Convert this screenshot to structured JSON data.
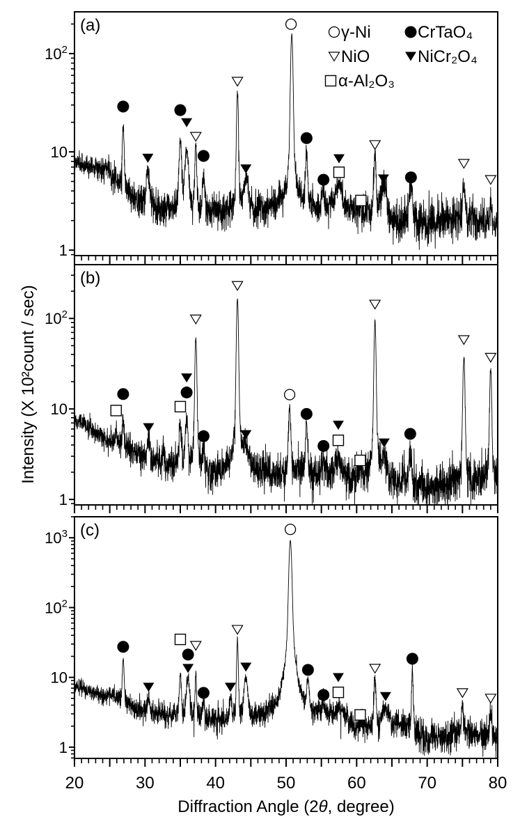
{
  "figure": {
    "y_axis_title": "Intensity (X 10²count / sec)",
    "x_axis_title_prefix": "Diffraction Angle (2",
    "x_axis_title_theta": "θ",
    "x_axis_title_suffix": ",  degree)",
    "x_tick_labels": [
      "20",
      "30",
      "40",
      "50",
      "60",
      "70",
      "80"
    ]
  },
  "legend": {
    "placement": "top-right of panel (a)",
    "entries": [
      {
        "phase": "gamma-Ni",
        "symbol": "open-circle",
        "label": "γ-Ni"
      },
      {
        "phase": "CrTaO4",
        "symbol": "filled-circle",
        "label": "CrTaO₄"
      },
      {
        "phase": "NiO",
        "symbol": "open-triangle-down",
        "label": "NiO"
      },
      {
        "phase": "NiCr2O4",
        "symbol": "filled-triangle-down",
        "label": "NiCr₂O₄"
      },
      {
        "phase": "alpha-Al2O3",
        "symbol": "open-square",
        "label": "α-Al₂O₃"
      }
    ]
  },
  "colors": {
    "line": "#000000",
    "markers": "#000000",
    "background": "#ffffff"
  },
  "chart_data": [
    {
      "type": "line",
      "panel_label": "(a)",
      "xlabel": "Diffraction Angle (2θ,  degree)",
      "ylabel": "Intensity (X 10²count / sec)",
      "xlim": [
        20,
        80
      ],
      "ylim": [
        0.88,
        266
      ],
      "y_scale": "log",
      "grid": false,
      "y_ticks": [
        {
          "value": 1,
          "base": "1",
          "exp": ""
        },
        {
          "value": 10,
          "base": "10",
          "exp": ""
        },
        {
          "value": 100,
          "base": "10",
          "exp": "2"
        }
      ],
      "background": [
        [
          20,
          8
        ],
        [
          24,
          6.6
        ],
        [
          27,
          4.2
        ],
        [
          29,
          3
        ],
        [
          33,
          2.6
        ],
        [
          40,
          2.4
        ],
        [
          47,
          2.6
        ],
        [
          49,
          2.9
        ],
        [
          55,
          2.7
        ],
        [
          60,
          2.5
        ],
        [
          65,
          2.0
        ],
        [
          70,
          1.8
        ],
        [
          75,
          2.2
        ],
        [
          80,
          1.8
        ]
      ],
      "peaks": [
        [
          24.6,
          6.8,
          1.0
        ],
        [
          26.9,
          19,
          0.25
        ],
        [
          30.4,
          6.4,
          0.5
        ],
        [
          35.0,
          13,
          0.35
        ],
        [
          35.9,
          11,
          0.5
        ],
        [
          37.2,
          12,
          0.25
        ],
        [
          38.3,
          6.1,
          0.35
        ],
        [
          43.1,
          40,
          0.25
        ],
        [
          44.3,
          5.7,
          0.6
        ],
        [
          50.8,
          160,
          0.3
        ],
        [
          52.9,
          9.7,
          0.3
        ],
        [
          55.3,
          4,
          0.4
        ],
        [
          57.5,
          4.8,
          0.9
        ],
        [
          60.6,
          2.6,
          0.5
        ],
        [
          62.6,
          9.4,
          0.3
        ],
        [
          63.8,
          4.5,
          0.8
        ],
        [
          67.7,
          4.5,
          0.5
        ],
        [
          75.2,
          5,
          0.3
        ],
        [
          79.0,
          3,
          0.3
        ]
      ],
      "markers": [
        {
          "x": 26.9,
          "y": 28.9,
          "phase": "CrTaO4"
        },
        {
          "x": 30.4,
          "y": 8.6,
          "phase": "NiCr2O4"
        },
        {
          "x": 35.0,
          "y": 26.6,
          "phase": "CrTaO4"
        },
        {
          "x": 35.9,
          "y": 19.8,
          "phase": "NiCr2O4"
        },
        {
          "x": 37.2,
          "y": 14.3,
          "phase": "NiO"
        },
        {
          "x": 38.3,
          "y": 9.1,
          "phase": "CrTaO4"
        },
        {
          "x": 43.1,
          "y": 52,
          "phase": "NiO"
        },
        {
          "x": 44.3,
          "y": 6.7,
          "phase": "NiCr2O4"
        },
        {
          "x": 50.7,
          "y": 199,
          "phase": "gamma-Ni"
        },
        {
          "x": 52.9,
          "y": 13.8,
          "phase": "CrTaO4"
        },
        {
          "x": 55.3,
          "y": 5.2,
          "phase": "CrTaO4"
        },
        {
          "x": 57.5,
          "y": 8.5,
          "phase": "NiCr2O4"
        },
        {
          "x": 57.5,
          "y": 6.2,
          "phase": "alpha-Al2O3"
        },
        {
          "x": 60.6,
          "y": 3.2,
          "phase": "alpha-Al2O3"
        },
        {
          "x": 62.6,
          "y": 11.8,
          "phase": "NiO"
        },
        {
          "x": 63.8,
          "y": 5.3,
          "phase": "NiCr2O4"
        },
        {
          "x": 67.7,
          "y": 5.5,
          "phase": "CrTaO4"
        },
        {
          "x": 75.2,
          "y": 7.6,
          "phase": "NiO"
        },
        {
          "x": 79.0,
          "y": 5.2,
          "phase": "NiO"
        }
      ]
    },
    {
      "type": "line",
      "panel_label": "(b)",
      "xlabel": "Diffraction Angle (2θ,  degree)",
      "ylabel": "Intensity (X 10²count / sec)",
      "xlim": [
        20,
        80
      ],
      "ylim": [
        0.87,
        393
      ],
      "y_scale": "log",
      "grid": false,
      "y_ticks": [
        {
          "value": 1,
          "base": "1",
          "exp": ""
        },
        {
          "value": 10,
          "base": "10",
          "exp": ""
        },
        {
          "value": 100,
          "base": "10",
          "exp": "2"
        }
      ],
      "background": [
        [
          20,
          7.9
        ],
        [
          25,
          4.4
        ],
        [
          30,
          2.9
        ],
        [
          33,
          2.4
        ],
        [
          40,
          1.9
        ],
        [
          45,
          2.3
        ],
        [
          48,
          1.8
        ],
        [
          55,
          2.0
        ],
        [
          60,
          1.6
        ],
        [
          65,
          1.6
        ],
        [
          70,
          1.33
        ],
        [
          75,
          1.5
        ],
        [
          80,
          1.6
        ]
      ],
      "peaks": [
        [
          23.4,
          5.0,
          0.3
        ],
        [
          25.9,
          5.7,
          0.25
        ],
        [
          26.9,
          8,
          0.25
        ],
        [
          30.5,
          4.7,
          0.35
        ],
        [
          32.6,
          3.7,
          0.2
        ],
        [
          35.0,
          7,
          0.3
        ],
        [
          35.9,
          7.5,
          0.4
        ],
        [
          37.2,
          62,
          0.25
        ],
        [
          38.3,
          3.5,
          0.3
        ],
        [
          43.1,
          168,
          0.25
        ],
        [
          44.3,
          3.7,
          0.6
        ],
        [
          50.5,
          10.6,
          0.3
        ],
        [
          52.9,
          6.7,
          0.3
        ],
        [
          55.3,
          2.7,
          0.4
        ],
        [
          57.4,
          2.9,
          0.9
        ],
        [
          60.5,
          2.2,
          0.5
        ],
        [
          62.6,
          92,
          0.25
        ],
        [
          63.9,
          2.9,
          0.8
        ],
        [
          67.6,
          3.4,
          0.4
        ],
        [
          75.2,
          39,
          0.25
        ],
        [
          79.0,
          28,
          0.25
        ]
      ],
      "markers": [
        {
          "x": 25.9,
          "y": 9.6,
          "phase": "alpha-Al2O3"
        },
        {
          "x": 26.9,
          "y": 14.6,
          "phase": "CrTaO4"
        },
        {
          "x": 30.5,
          "y": 6.2,
          "phase": "NiCr2O4"
        },
        {
          "x": 35.0,
          "y": 10.6,
          "phase": "alpha-Al2O3"
        },
        {
          "x": 35.9,
          "y": 15.2,
          "phase": "CrTaO4"
        },
        {
          "x": 35.9,
          "y": 22,
          "phase": "NiCr2O4"
        },
        {
          "x": 37.2,
          "y": 98,
          "phase": "NiO"
        },
        {
          "x": 38.3,
          "y": 5.0,
          "phase": "CrTaO4"
        },
        {
          "x": 43.1,
          "y": 230,
          "phase": "NiO"
        },
        {
          "x": 44.3,
          "y": 5.2,
          "phase": "NiCr2O4"
        },
        {
          "x": 50.5,
          "y": 14.4,
          "phase": "gamma-Ni"
        },
        {
          "x": 52.9,
          "y": 8.8,
          "phase": "CrTaO4"
        },
        {
          "x": 55.3,
          "y": 3.9,
          "phase": "CrTaO4"
        },
        {
          "x": 57.4,
          "y": 6.6,
          "phase": "NiCr2O4"
        },
        {
          "x": 57.4,
          "y": 4.5,
          "phase": "alpha-Al2O3"
        },
        {
          "x": 60.5,
          "y": 2.7,
          "phase": "alpha-Al2O3"
        },
        {
          "x": 62.6,
          "y": 143,
          "phase": "NiO"
        },
        {
          "x": 63.9,
          "y": 4.2,
          "phase": "NiCr2O4"
        },
        {
          "x": 67.6,
          "y": 5.3,
          "phase": "CrTaO4"
        },
        {
          "x": 75.2,
          "y": 58,
          "phase": "NiO"
        },
        {
          "x": 79.0,
          "y": 37,
          "phase": "NiO"
        }
      ]
    },
    {
      "type": "line",
      "panel_label": "(c)",
      "xlabel": "Diffraction Angle (2θ,  degree)",
      "ylabel": "Intensity (X 10²count / sec)",
      "xlim": [
        20,
        80
      ],
      "ylim": [
        0.69,
        2000
      ],
      "y_scale": "log",
      "grid": false,
      "y_ticks": [
        {
          "value": 1,
          "base": "1",
          "exp": ""
        },
        {
          "value": 10,
          "base": "10",
          "exp": ""
        },
        {
          "value": 100,
          "base": "10",
          "exp": "2"
        },
        {
          "value": 1000,
          "base": "10",
          "exp": "3"
        }
      ],
      "background": [
        [
          20,
          7.5
        ],
        [
          25,
          5
        ],
        [
          30,
          3.2
        ],
        [
          40,
          2.3
        ],
        [
          47,
          2.5
        ],
        [
          55,
          2.7
        ],
        [
          58,
          2.8
        ],
        [
          60,
          1.7
        ],
        [
          62,
          1.8
        ],
        [
          66,
          2.2
        ],
        [
          70,
          1.25
        ],
        [
          75,
          1.6
        ],
        [
          80,
          1.4
        ]
      ],
      "peaks": [
        [
          25.2,
          5.8,
          1.2
        ],
        [
          26.9,
          18.9,
          0.25
        ],
        [
          30.5,
          4.8,
          0.4
        ],
        [
          35.0,
          10.6,
          0.3
        ],
        [
          36.1,
          10,
          0.45
        ],
        [
          37.2,
          10.6,
          0.2
        ],
        [
          38.3,
          4.5,
          0.3
        ],
        [
          42.1,
          5.1,
          0.3
        ],
        [
          43.1,
          35,
          0.2
        ],
        [
          44.3,
          10,
          0.5
        ],
        [
          50.6,
          915,
          0.35
        ],
        [
          53.1,
          8.1,
          0.35
        ],
        [
          55.3,
          3.8,
          0.35
        ],
        [
          57.4,
          3.5,
          1.0
        ],
        [
          60.5,
          2.5,
          0.5
        ],
        [
          62.6,
          9.5,
          0.3
        ],
        [
          64.1,
          3.5,
          0.9
        ],
        [
          67.9,
          13.4,
          0.2
        ],
        [
          75.0,
          4.0,
          0.3
        ],
        [
          79.0,
          2.9,
          0.3
        ]
      ],
      "markers": [
        {
          "x": 26.9,
          "y": 27.4,
          "phase": "CrTaO4"
        },
        {
          "x": 30.5,
          "y": 7.2,
          "phase": "NiCr2O4"
        },
        {
          "x": 35.0,
          "y": 35,
          "phase": "alpha-Al2O3"
        },
        {
          "x": 36.1,
          "y": 21.2,
          "phase": "CrTaO4"
        },
        {
          "x": 36.1,
          "y": 13.4,
          "phase": "NiCr2O4"
        },
        {
          "x": 37.2,
          "y": 28.5,
          "phase": "NiO"
        },
        {
          "x": 38.3,
          "y": 6.0,
          "phase": "CrTaO4"
        },
        {
          "x": 42.1,
          "y": 7.2,
          "phase": "NiCr2O4"
        },
        {
          "x": 43.1,
          "y": 48.3,
          "phase": "NiO"
        },
        {
          "x": 44.3,
          "y": 14,
          "phase": "NiCr2O4"
        },
        {
          "x": 50.6,
          "y": 1318,
          "phase": "gamma-Ni"
        },
        {
          "x": 53.1,
          "y": 12.8,
          "phase": "CrTaO4"
        },
        {
          "x": 55.3,
          "y": 5.6,
          "phase": "CrTaO4"
        },
        {
          "x": 57.4,
          "y": 9.9,
          "phase": "NiCr2O4"
        },
        {
          "x": 57.4,
          "y": 6.1,
          "phase": "alpha-Al2O3"
        },
        {
          "x": 60.5,
          "y": 2.9,
          "phase": "alpha-Al2O3"
        },
        {
          "x": 62.6,
          "y": 13.4,
          "phase": "NiO"
        },
        {
          "x": 64.1,
          "y": 5.3,
          "phase": "NiCr2O4"
        },
        {
          "x": 67.9,
          "y": 18.5,
          "phase": "CrTaO4"
        },
        {
          "x": 75.0,
          "y": 6.0,
          "phase": "NiO"
        },
        {
          "x": 79.0,
          "y": 5.0,
          "phase": "NiO"
        }
      ]
    }
  ]
}
